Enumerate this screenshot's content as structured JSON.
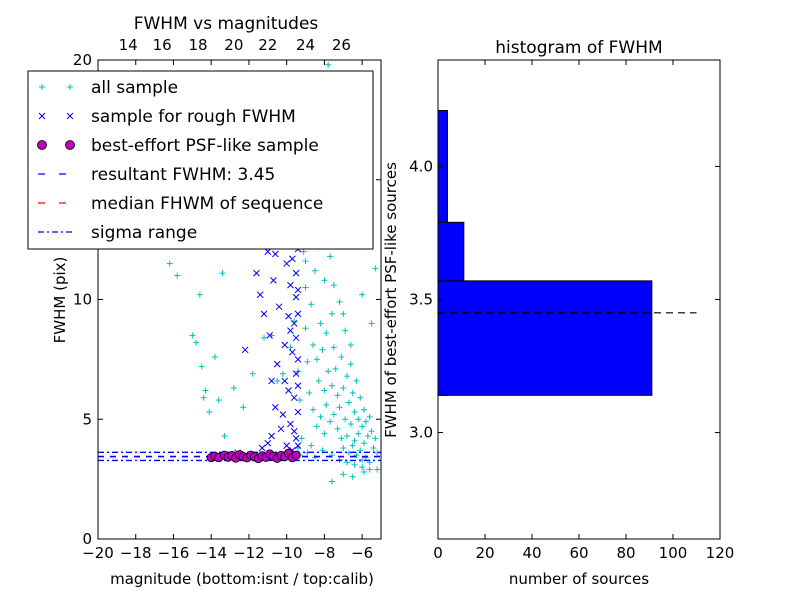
{
  "chart_data": [
    {
      "type": "scatter",
      "title": "FWHM vs magnitudes",
      "xlabel": "magnitude (bottom:isnt / top:calib)",
      "ylabel": "FWHM (pix)",
      "xlim": [
        -20,
        -5
      ],
      "ylim": [
        0,
        20
      ],
      "x_ticks": [
        "−20",
        "−18",
        "−16",
        "−14",
        "−12",
        "−10",
        "−8",
        "−6"
      ],
      "x_tick_values": [
        -20,
        -18,
        -16,
        -14,
        -12,
        -10,
        -8,
        -6
      ],
      "y_ticks": [
        "0",
        "5",
        "10",
        "15",
        "20"
      ],
      "y_tick_values": [
        0,
        5,
        10,
        15,
        20
      ],
      "top_axis_ticks": [
        "14",
        "16",
        "18",
        "20",
        "22",
        "24",
        "26"
      ],
      "top_axis_positions": [
        -18.4,
        -16.6,
        -14.7,
        -12.8,
        -11.0,
        -9.0,
        -7.1
      ],
      "legend_position": "upper-left",
      "legend": [
        {
          "label": "all sample",
          "marker": "plus",
          "color": "#00bfbf"
        },
        {
          "label": "sample for rough FWHM",
          "marker": "x",
          "color": "#0000ff"
        },
        {
          "label": "best-effort PSF-like sample",
          "marker": "circle",
          "color": "#bf00bf"
        },
        {
          "label": "resultant FWHM: 3.45",
          "marker": "dashed-line",
          "color": "#0000ff"
        },
        {
          "label": "median FHWM of sequence",
          "marker": "dashed-line",
          "color": "#ff0000"
        },
        {
          "label": "sigma range",
          "marker": "dashdot-line",
          "color": "#0000ff"
        }
      ],
      "resultant_fwhm": 3.45,
      "median_fwhm": 3.43,
      "sigma_range": [
        3.28,
        3.62
      ],
      "series": [
        {
          "name": "all sample",
          "color": "#00bfbf",
          "points": [
            [
              -16.2,
              11.5
            ],
            [
              -15.8,
              11.0
            ],
            [
              -15.0,
              8.5
            ],
            [
              -14.6,
              10.2
            ],
            [
              -14.8,
              8.2
            ],
            [
              -14.5,
              7.2
            ],
            [
              -14.3,
              6.2
            ],
            [
              -14.1,
              5.3
            ],
            [
              -13.8,
              7.6
            ],
            [
              -13.6,
              5.8
            ],
            [
              -14.4,
              5.9
            ],
            [
              -13.3,
              4.3
            ],
            [
              -12.8,
              6.3
            ],
            [
              -12.3,
              5.5
            ],
            [
              -11.8,
              6.9
            ],
            [
              -11.2,
              8.4
            ],
            [
              -10.8,
              8.5
            ],
            [
              -10.5,
              6.6
            ],
            [
              -10.2,
              6.9
            ],
            [
              -9.8,
              8.0
            ],
            [
              -9.6,
              9.1
            ],
            [
              -9.4,
              7.0
            ],
            [
              -9.3,
              5.8
            ],
            [
              -9.2,
              14.0
            ],
            [
              -9.1,
              12.0
            ],
            [
              -9.0,
              10.5
            ],
            [
              -9.0,
              8.8
            ],
            [
              -8.9,
              7.4
            ],
            [
              -8.8,
              15.2
            ],
            [
              -8.8,
              6.1
            ],
            [
              -8.7,
              13.0
            ],
            [
              -8.7,
              9.8
            ],
            [
              -8.6,
              8.1
            ],
            [
              -8.6,
              5.4
            ],
            [
              -8.5,
              17.5
            ],
            [
              -8.5,
              11.2
            ],
            [
              -8.4,
              7.5
            ],
            [
              -8.4,
              4.7
            ],
            [
              -8.3,
              12.4
            ],
            [
              -8.3,
              6.6
            ],
            [
              -8.2,
              9.0
            ],
            [
              -8.2,
              5.1
            ],
            [
              -8.1,
              14.1
            ],
            [
              -8.1,
              7.9
            ],
            [
              -8.0,
              10.8
            ],
            [
              -8.0,
              6.2
            ],
            [
              -8.0,
              4.4
            ],
            [
              -7.9,
              8.6
            ],
            [
              -7.9,
              5.6
            ],
            [
              -7.8,
              19.8
            ],
            [
              -7.8,
              7.0
            ],
            [
              -7.7,
              11.8
            ],
            [
              -7.7,
              4.9
            ],
            [
              -7.6,
              9.4
            ],
            [
              -7.6,
              6.4
            ],
            [
              -7.5,
              8.0
            ],
            [
              -7.5,
              5.2
            ],
            [
              -7.4,
              13.1
            ],
            [
              -7.4,
              7.1
            ],
            [
              -7.3,
              6.0
            ],
            [
              -7.3,
              4.6
            ],
            [
              -7.2,
              9.9
            ],
            [
              -7.2,
              5.5
            ],
            [
              -7.1,
              7.6
            ],
            [
              -7.1,
              4.2
            ],
            [
              -7.0,
              6.3
            ],
            [
              -7.0,
              3.8
            ],
            [
              -6.9,
              8.7
            ],
            [
              -6.9,
              5.0
            ],
            [
              -6.8,
              6.8
            ],
            [
              -6.8,
              4.3
            ],
            [
              -6.7,
              5.7
            ],
            [
              -6.7,
              3.6
            ],
            [
              -6.6,
              7.3
            ],
            [
              -6.6,
              4.8
            ],
            [
              -6.5,
              6.1
            ],
            [
              -6.5,
              3.9
            ],
            [
              -6.4,
              5.3
            ],
            [
              -6.4,
              4.1
            ],
            [
              -6.3,
              6.6
            ],
            [
              -6.3,
              3.5
            ],
            [
              -6.2,
              5.0
            ],
            [
              -6.2,
              4.4
            ],
            [
              -6.1,
              5.9
            ],
            [
              -6.1,
              3.7
            ],
            [
              -6.0,
              4.7
            ],
            [
              -6.0,
              3.3
            ],
            [
              -5.9,
              5.4
            ],
            [
              -5.9,
              4.0
            ],
            [
              -5.8,
              4.9
            ],
            [
              -5.8,
              3.4
            ],
            [
              -5.7,
              4.3
            ],
            [
              -5.6,
              5.1
            ],
            [
              -5.6,
              3.2
            ],
            [
              -5.5,
              4.5
            ],
            [
              -5.4,
              3.8
            ],
            [
              -5.3,
              4.2
            ],
            [
              -5.2,
              3.6
            ],
            [
              -8.9,
              3.6
            ],
            [
              -8.5,
              3.4
            ],
            [
              -8.1,
              3.7
            ],
            [
              -7.6,
              3.5
            ],
            [
              -7.2,
              3.3
            ],
            [
              -6.8,
              3.2
            ],
            [
              -6.4,
              3.1
            ],
            [
              -6.0,
              3.0
            ],
            [
              -5.6,
              2.9
            ],
            [
              -7.6,
              2.4
            ],
            [
              -7.0,
              2.7
            ],
            [
              -6.5,
              2.6
            ],
            [
              -5.9,
              2.8
            ],
            [
              -5.2,
              2.9
            ],
            [
              -8.3,
              18.5
            ],
            [
              -7.4,
              18.9
            ],
            [
              -6.9,
              16.5
            ],
            [
              -6.4,
              12.2
            ],
            [
              -6.0,
              10.2
            ],
            [
              -5.5,
              9.0
            ],
            [
              -5.3,
              11.3
            ],
            [
              -9.5,
              19.4
            ],
            [
              -11.8,
              19.0
            ],
            [
              -11.2,
              18.8
            ],
            [
              -13.4,
              11.1
            ],
            [
              -9.4,
              3.8
            ],
            [
              -9.2,
              4.2
            ],
            [
              -9.3,
              3.5
            ],
            [
              -8.7,
              3.9
            ],
            [
              -9.0,
              11.6
            ],
            [
              -8.4,
              16.0
            ],
            [
              -8.0,
              14.9
            ],
            [
              -7.5,
              10.6
            ],
            [
              -7.0,
              9.4
            ],
            [
              -6.6,
              8.1
            ]
          ]
        },
        {
          "name": "sample for rough FWHM",
          "color": "#0000ff",
          "points": [
            [
              -12.2,
              7.9
            ],
            [
              -11.9,
              12.4
            ],
            [
              -11.6,
              11.1
            ],
            [
              -11.4,
              10.2
            ],
            [
              -11.2,
              9.4
            ],
            [
              -11.0,
              12.0
            ],
            [
              -10.9,
              8.5
            ],
            [
              -10.8,
              6.6
            ],
            [
              -10.7,
              10.8
            ],
            [
              -10.6,
              11.9
            ],
            [
              -10.5,
              7.3
            ],
            [
              -10.4,
              9.7
            ],
            [
              -10.3,
              12.3
            ],
            [
              -10.2,
              5.2
            ],
            [
              -10.1,
              8.1
            ],
            [
              -10.0,
              11.5
            ],
            [
              -9.9,
              6.2
            ],
            [
              -9.9,
              9.3
            ],
            [
              -9.8,
              10.6
            ],
            [
              -9.8,
              4.8
            ],
            [
              -9.7,
              7.8
            ],
            [
              -9.7,
              11.7
            ],
            [
              -9.6,
              5.9
            ],
            [
              -9.6,
              9.0
            ],
            [
              -9.6,
              12.5
            ],
            [
              -9.5,
              4.2
            ],
            [
              -9.5,
              6.9
            ],
            [
              -9.5,
              8.4
            ],
            [
              -9.5,
              10.1
            ],
            [
              -9.5,
              11.1
            ],
            [
              -9.4,
              3.9
            ],
            [
              -9.4,
              5.3
            ],
            [
              -9.4,
              6.4
            ],
            [
              -9.4,
              7.5
            ],
            [
              -9.4,
              9.4
            ],
            [
              -9.4,
              10.4
            ],
            [
              -9.4,
              12.1
            ],
            [
              -10.8,
              4.3
            ],
            [
              -10.3,
              4.6
            ],
            [
              -10.0,
              3.9
            ],
            [
              -11.0,
              4.0
            ],
            [
              -10.6,
              5.5
            ],
            [
              -10.1,
              6.6
            ],
            [
              -9.8,
              8.7
            ],
            [
              -9.7,
              3.7
            ],
            [
              -9.6,
              4.5
            ],
            [
              -11.3,
              3.8
            ],
            [
              -12.6,
              3.6
            ]
          ]
        },
        {
          "name": "best-effort PSF-like sample",
          "color": "#bf00bf",
          "points": [
            [
              -14.0,
              3.4
            ],
            [
              -13.8,
              3.45
            ],
            [
              -13.6,
              3.4
            ],
            [
              -13.3,
              3.5
            ],
            [
              -13.1,
              3.42
            ],
            [
              -12.9,
              3.48
            ],
            [
              -12.7,
              3.38
            ],
            [
              -12.5,
              3.52
            ],
            [
              -12.3,
              3.44
            ],
            [
              -12.1,
              3.39
            ],
            [
              -11.9,
              3.5
            ],
            [
              -11.7,
              3.43
            ],
            [
              -11.5,
              3.36
            ],
            [
              -11.3,
              3.47
            ],
            [
              -11.1,
              3.41
            ],
            [
              -10.9,
              3.55
            ],
            [
              -10.7,
              3.45
            ],
            [
              -10.5,
              3.37
            ],
            [
              -10.3,
              3.49
            ],
            [
              -10.1,
              3.44
            ],
            [
              -9.9,
              3.58
            ],
            [
              -9.7,
              3.4
            ],
            [
              -9.5,
              3.5
            ]
          ]
        }
      ]
    },
    {
      "type": "bar",
      "orientation": "horizontal",
      "title": "histogram of FWHM",
      "xlabel": "number of sources",
      "ylabel": "FWHM of best-effort PSF-like sources",
      "xlim": [
        0,
        120
      ],
      "ylim": [
        2.6,
        4.4
      ],
      "x_ticks": [
        "0",
        "20",
        "40",
        "60",
        "80",
        "100",
        "120"
      ],
      "x_tick_values": [
        0,
        20,
        40,
        60,
        80,
        100,
        120
      ],
      "y_ticks": [
        "3.0",
        "3.5",
        "4.0"
      ],
      "y_tick_values": [
        3.0,
        3.5,
        4.0
      ],
      "bin_edges": [
        3.14,
        3.57,
        3.79,
        4.21
      ],
      "values": [
        91,
        11,
        4
      ],
      "secondary_bins": [
        {
          "range": [
            3.14,
            4.21
          ],
          "value": 4
        }
      ],
      "median_line": 3.45,
      "median_line_extent": [
        0,
        110
      ],
      "bar_color": "#0000ff"
    }
  ]
}
